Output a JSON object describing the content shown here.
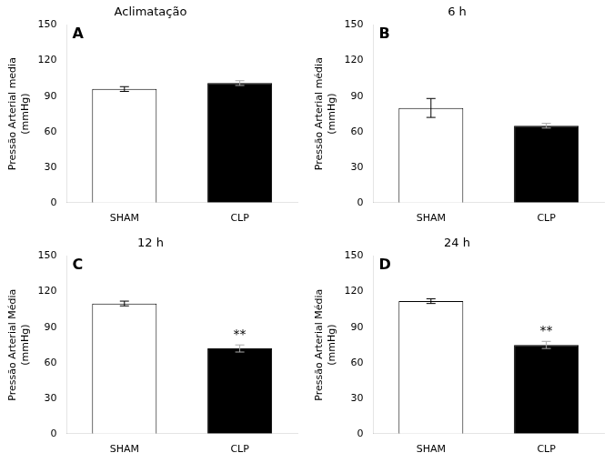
{
  "chart_data": [
    {
      "type": "bar",
      "title": "Aclimatação",
      "ylabel": "Pressão Arterial media\n(mmHg)",
      "categories": [
        "SHAM",
        "CLP"
      ],
      "values": [
        96,
        101
      ],
      "errors": [
        2,
        2
      ],
      "colors": [
        "#ffffff",
        "#000000"
      ],
      "annotations": [
        {
          "text": "A"
        }
      ],
      "ylim": [
        0,
        150
      ],
      "yticks": [
        0,
        30,
        60,
        90,
        120,
        150
      ],
      "grid": false,
      "legend": false
    },
    {
      "type": "bar",
      "title": "6 h",
      "ylabel": "Pressão Arterial média\n(mmHg)",
      "categories": [
        "SHAM",
        "CLP"
      ],
      "values": [
        80,
        65
      ],
      "errors": [
        8,
        2
      ],
      "colors": [
        "#ffffff",
        "#000000"
      ],
      "annotations": [
        {
          "text": "B"
        }
      ],
      "ylim": [
        0,
        150
      ],
      "yticks": [
        0,
        30,
        60,
        90,
        120,
        150
      ],
      "grid": false,
      "legend": false
    },
    {
      "type": "bar",
      "title": "12 h",
      "ylabel": "Pressão Arterial Média\n(mmHg)",
      "categories": [
        "SHAM",
        "CLP"
      ],
      "values": [
        110,
        72
      ],
      "errors": [
        2,
        3
      ],
      "colors": [
        "#ffffff",
        "#000000"
      ],
      "annotations": [
        {
          "text": "C"
        },
        {
          "text": "**",
          "category": "CLP"
        }
      ],
      "ylim": [
        0,
        150
      ],
      "yticks": [
        0,
        30,
        60,
        90,
        120,
        150
      ],
      "grid": false,
      "legend": false
    },
    {
      "type": "bar",
      "title": "24 h",
      "ylabel": "Pressão Arterial Média\n(mmHg)",
      "categories": [
        "SHAM",
        "CLP"
      ],
      "values": [
        112,
        75
      ],
      "errors": [
        2,
        3
      ],
      "colors": [
        "#ffffff",
        "#000000"
      ],
      "annotations": [
        {
          "text": "D"
        },
        {
          "text": "**",
          "category": "CLP"
        }
      ],
      "ylim": [
        0,
        150
      ],
      "yticks": [
        0,
        30,
        60,
        90,
        120,
        150
      ],
      "grid": false,
      "legend": false
    }
  ]
}
